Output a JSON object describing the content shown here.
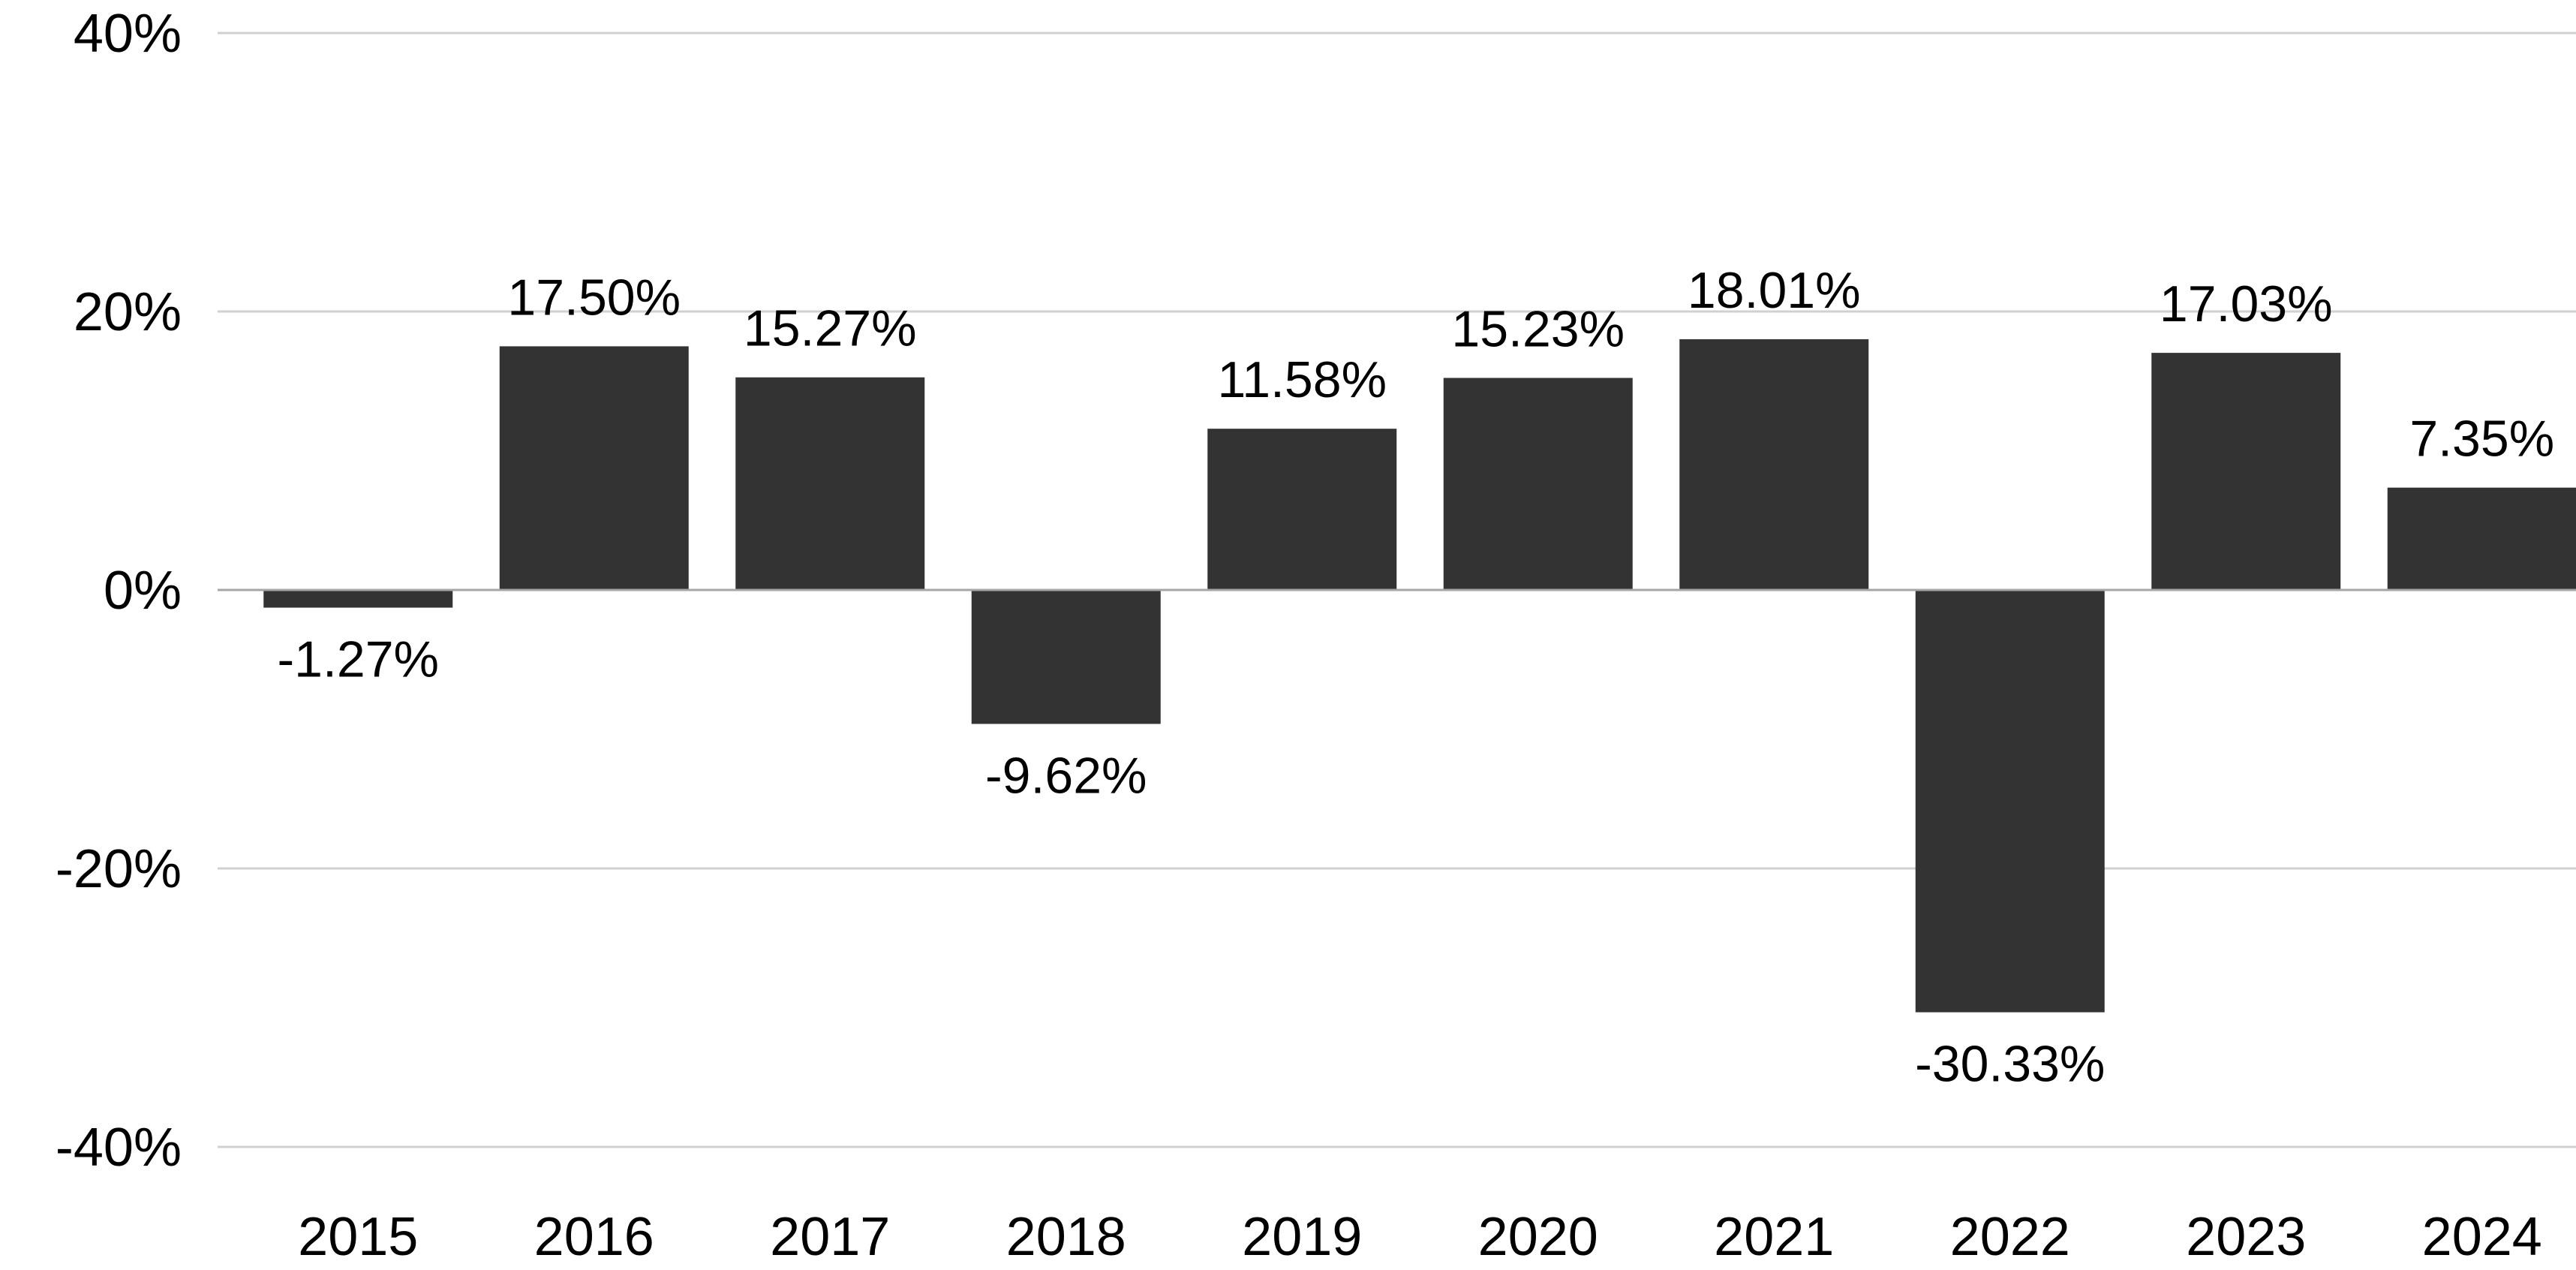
{
  "colors": {
    "bar": "#333333",
    "gridline": "#d0d0d0",
    "zero_line": "#a6a6a6",
    "text": "#000000",
    "background": "#ffffff"
  },
  "chart_data": {
    "type": "bar",
    "categories": [
      "2015",
      "2016",
      "2017",
      "2018",
      "2019",
      "2020",
      "2021",
      "2022",
      "2023",
      "2024"
    ],
    "values": [
      -1.27,
      17.5,
      15.27,
      -9.62,
      11.58,
      15.23,
      18.01,
      -30.33,
      17.03,
      7.35
    ],
    "data_labels": [
      "-1.27%",
      "17.50%",
      "15.27%",
      "-9.62%",
      "11.58%",
      "15.23%",
      "18.01%",
      "-30.33%",
      "17.03%",
      "7.35%"
    ],
    "ylim": [
      -40,
      40
    ],
    "y_ticks": [
      40,
      20,
      0,
      -20,
      -40
    ],
    "y_tick_labels": [
      "40%",
      "20%",
      "0%",
      "-20%",
      "-40%"
    ],
    "grid": true,
    "legend": "none"
  }
}
